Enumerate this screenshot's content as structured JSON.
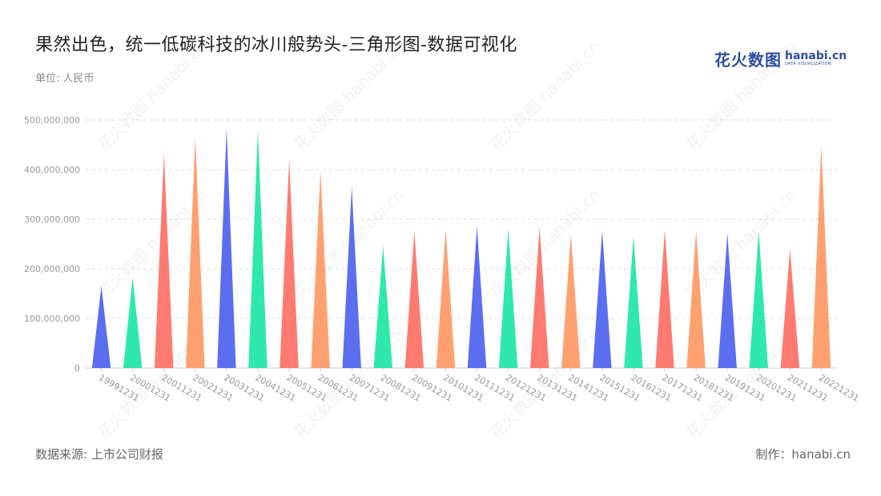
{
  "header": {
    "title": "果然出色，统一低碳科技的冰川般势头-三角形图-数据可视化",
    "unit": "单位: 人民币"
  },
  "logo": {
    "cn": "花火数图",
    "en": "hanabi.cn",
    "sub": "DATA VISUALIZATION"
  },
  "footer": {
    "source": "数据来源: 上市公司财报",
    "maker": "制作：hanabi.cn"
  },
  "watermark": "花火数图 hanabi.cn",
  "chart_data": {
    "type": "bar",
    "mark": "triangle",
    "categories": [
      "19991231",
      "20001231",
      "20011231",
      "20021231",
      "20031231",
      "20041231",
      "20051231",
      "20061231",
      "20071231",
      "20081231",
      "20091231",
      "20101231",
      "20111231",
      "20121231",
      "20131231",
      "20141231",
      "20151231",
      "20161231",
      "20171231",
      "20181231",
      "20191231",
      "20201231",
      "20211231",
      "20221231"
    ],
    "values": [
      165000000,
      183000000,
      432000000,
      466000000,
      482000000,
      480000000,
      420000000,
      398000000,
      365000000,
      247000000,
      276000000,
      280000000,
      286000000,
      280000000,
      284000000,
      270000000,
      277000000,
      265000000,
      278000000,
      277000000,
      272000000,
      276000000,
      240000000,
      450000000
    ],
    "colors": [
      "#5b6ef0",
      "#2ee8ae",
      "#ff7a70",
      "#ffa070"
    ],
    "ylim": [
      0,
      500000000
    ],
    "yticks": [
      0,
      100000000,
      200000000,
      300000000,
      400000000,
      500000000
    ],
    "ytick_labels": [
      "0",
      "100,000,000",
      "200,000,000",
      "300,000,000",
      "400,000,000",
      "500,000,000"
    ],
    "grid": true,
    "xlabel": "",
    "ylabel": ""
  }
}
